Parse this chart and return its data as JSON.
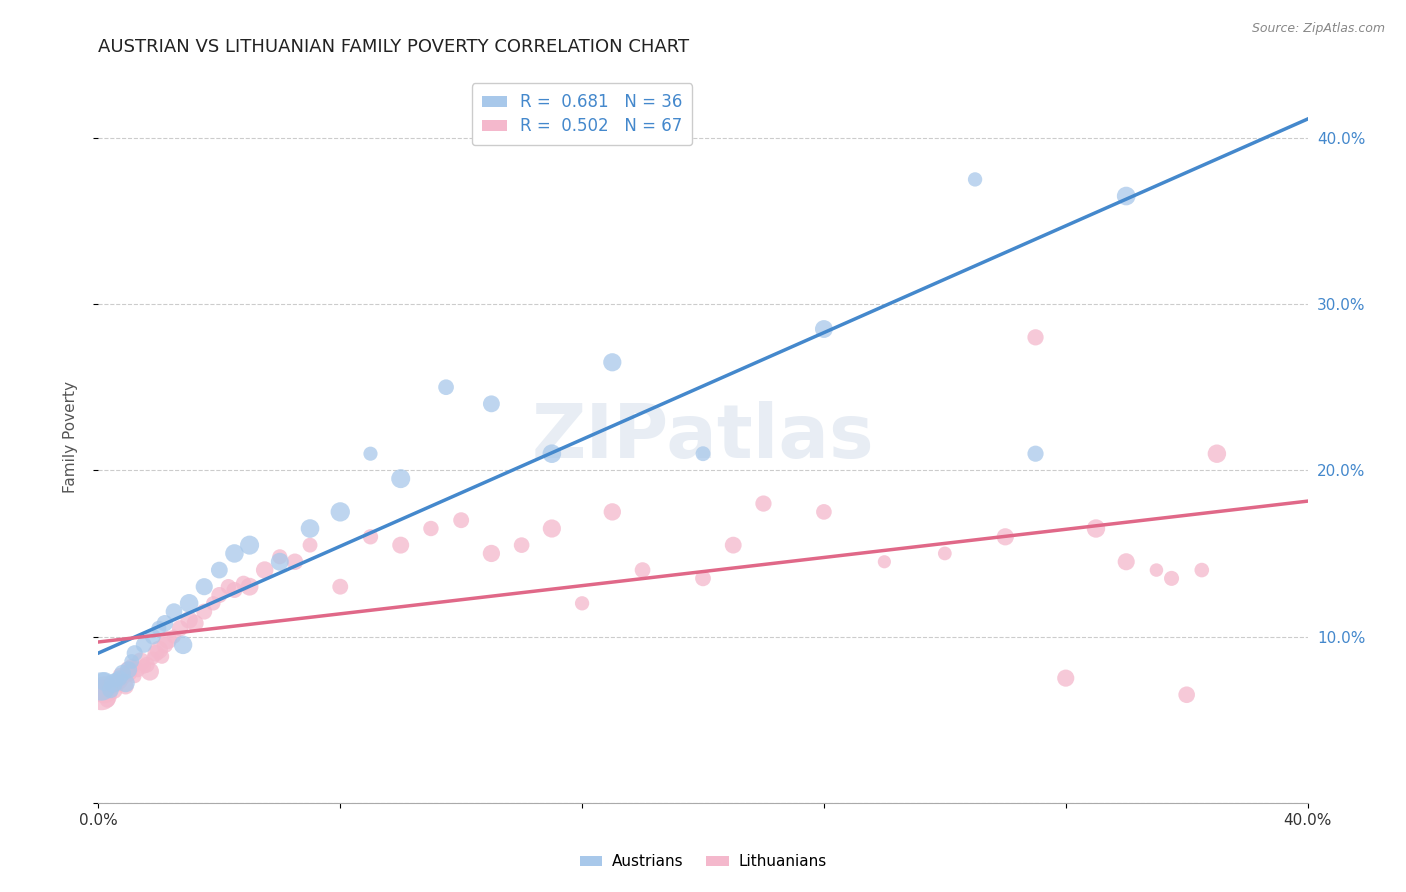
{
  "title": "AUSTRIAN VS LITHUANIAN FAMILY POVERTY CORRELATION CHART",
  "source": "Source: ZipAtlas.com",
  "ylabel": "Family Poverty",
  "watermark": "ZIPatlas",
  "xmin": 0.0,
  "xmax": 0.4,
  "ymin": 0.0,
  "ymax": 0.44,
  "ytick_positions": [
    0.0,
    0.1,
    0.2,
    0.3,
    0.4
  ],
  "ytick_labels_right": [
    "",
    "10.0%",
    "20.0%",
    "30.0%",
    "40.0%"
  ],
  "xtick_positions": [
    0.0,
    0.08,
    0.16,
    0.24,
    0.32,
    0.4
  ],
  "xtick_labels": [
    "0.0%",
    "",
    "",
    "",
    "",
    "40.0%"
  ],
  "austrians_R": 0.681,
  "austrians_N": 36,
  "lithuanians_R": 0.502,
  "lithuanians_N": 67,
  "color_austrians": "#a8c8ea",
  "color_lithuanians": "#f4b8cc",
  "color_line_austrians": "#4488cc",
  "color_line_lithuanians": "#e06888",
  "austrians_x": [
    0.001,
    0.002,
    0.004,
    0.005,
    0.006,
    0.007,
    0.008,
    0.009,
    0.01,
    0.011,
    0.012,
    0.015,
    0.018,
    0.02,
    0.022,
    0.025,
    0.028,
    0.03,
    0.035,
    0.04,
    0.045,
    0.05,
    0.06,
    0.07,
    0.08,
    0.09,
    0.1,
    0.115,
    0.13,
    0.15,
    0.17,
    0.2,
    0.24,
    0.29,
    0.31,
    0.34
  ],
  "austrians_y": [
    0.07,
    0.073,
    0.068,
    0.072,
    0.074,
    0.075,
    0.078,
    0.072,
    0.08,
    0.085,
    0.09,
    0.095,
    0.1,
    0.105,
    0.108,
    0.115,
    0.095,
    0.12,
    0.13,
    0.14,
    0.15,
    0.155,
    0.145,
    0.165,
    0.175,
    0.21,
    0.195,
    0.25,
    0.24,
    0.21,
    0.265,
    0.21,
    0.285,
    0.375,
    0.21,
    0.365
  ],
  "lithuanians_x": [
    0.001,
    0.002,
    0.003,
    0.004,
    0.005,
    0.006,
    0.007,
    0.007,
    0.008,
    0.009,
    0.01,
    0.01,
    0.011,
    0.012,
    0.013,
    0.014,
    0.015,
    0.016,
    0.017,
    0.018,
    0.019,
    0.02,
    0.021,
    0.022,
    0.023,
    0.025,
    0.027,
    0.03,
    0.032,
    0.035,
    0.038,
    0.04,
    0.043,
    0.045,
    0.048,
    0.05,
    0.055,
    0.06,
    0.065,
    0.07,
    0.08,
    0.09,
    0.1,
    0.11,
    0.12,
    0.13,
    0.14,
    0.15,
    0.16,
    0.17,
    0.18,
    0.2,
    0.21,
    0.22,
    0.24,
    0.26,
    0.28,
    0.3,
    0.31,
    0.32,
    0.33,
    0.34,
    0.35,
    0.355,
    0.36,
    0.365,
    0.37
  ],
  "lithuanians_y": [
    0.065,
    0.068,
    0.062,
    0.07,
    0.068,
    0.072,
    0.073,
    0.077,
    0.075,
    0.07,
    0.078,
    0.08,
    0.082,
    0.076,
    0.08,
    0.085,
    0.082,
    0.083,
    0.079,
    0.087,
    0.09,
    0.092,
    0.088,
    0.095,
    0.098,
    0.1,
    0.105,
    0.11,
    0.108,
    0.115,
    0.12,
    0.125,
    0.13,
    0.128,
    0.132,
    0.13,
    0.14,
    0.148,
    0.145,
    0.155,
    0.13,
    0.16,
    0.155,
    0.165,
    0.17,
    0.15,
    0.155,
    0.165,
    0.12,
    0.175,
    0.14,
    0.135,
    0.155,
    0.18,
    0.175,
    0.145,
    0.15,
    0.16,
    0.28,
    0.075,
    0.165,
    0.145,
    0.14,
    0.135,
    0.065,
    0.14,
    0.21
  ],
  "grid_color": "#cccccc",
  "bg_color": "#ffffff",
  "title_fontsize": 13,
  "label_fontsize": 11,
  "legend_fontsize": 12,
  "tick_fontsize": 11,
  "point_size": 120
}
